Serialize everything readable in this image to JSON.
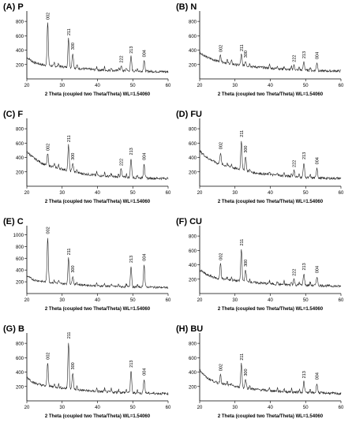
{
  "chart_data": [
    {
      "type": "line",
      "title": "(A) P",
      "xlabel": "2 Theta (coupled two Theta/Theta) WL=1.54060",
      "xlim": [
        20,
        60
      ],
      "xticks": [
        20,
        30,
        40,
        50,
        60
      ],
      "ylim": [
        0,
        900
      ],
      "yticks": [
        200,
        400,
        600,
        800
      ],
      "baseline": [
        [
          20,
          300
        ],
        [
          22,
          230
        ],
        [
          25,
          190
        ],
        [
          30,
          170
        ],
        [
          35,
          145
        ],
        [
          40,
          125
        ],
        [
          45,
          115
        ],
        [
          50,
          110
        ],
        [
          55,
          105
        ],
        [
          60,
          100
        ]
      ],
      "peaks": [
        {
          "label": "002",
          "x": 25.9,
          "y": 780
        },
        {
          "label": "211",
          "x": 31.8,
          "y": 560
        },
        {
          "label": "300",
          "x": 33.0,
          "y": 360
        },
        {
          "label": "222",
          "x": 46.7,
          "y": 180
        },
        {
          "label": "213",
          "x": 49.5,
          "y": 310
        },
        {
          "label": "004",
          "x": 53.2,
          "y": 260
        }
      ]
    },
    {
      "type": "line",
      "title": "(B) N",
      "xlabel": "2 Theta (coupled two Theta/Theta) WL=1.54060",
      "xlim": [
        20,
        60
      ],
      "xticks": [
        20,
        30,
        40,
        50,
        60
      ],
      "ylim": [
        0,
        900
      ],
      "yticks": [
        200,
        400,
        600,
        800
      ],
      "baseline": [
        [
          20,
          370
        ],
        [
          22,
          300
        ],
        [
          25,
          250
        ],
        [
          30,
          200
        ],
        [
          35,
          170
        ],
        [
          40,
          150
        ],
        [
          45,
          130
        ],
        [
          50,
          120
        ],
        [
          55,
          110
        ],
        [
          60,
          110
        ]
      ],
      "peaks": [
        {
          "label": "002",
          "x": 25.9,
          "y": 330
        },
        {
          "label": "211",
          "x": 31.8,
          "y": 340
        },
        {
          "label": "300",
          "x": 33.0,
          "y": 250
        },
        {
          "label": "222",
          "x": 46.7,
          "y": 190
        },
        {
          "label": "213",
          "x": 49.5,
          "y": 240
        },
        {
          "label": "004",
          "x": 53.2,
          "y": 230
        }
      ]
    },
    {
      "type": "line",
      "title": "(C) F",
      "xlabel": "2 Theta (coupled two Theta/Theta) WL=1.54060",
      "xlim": [
        20,
        60
      ],
      "xticks": [
        20,
        30,
        40,
        50,
        60
      ],
      "ylim": [
        0,
        900
      ],
      "yticks": [
        200,
        400,
        600,
        800
      ],
      "baseline": [
        [
          20,
          480
        ],
        [
          22,
          390
        ],
        [
          25,
          300
        ],
        [
          30,
          240
        ],
        [
          35,
          180
        ],
        [
          40,
          150
        ],
        [
          45,
          130
        ],
        [
          50,
          120
        ],
        [
          55,
          110
        ],
        [
          60,
          110
        ]
      ],
      "peaks": [
        {
          "label": "002",
          "x": 25.9,
          "y": 450
        },
        {
          "label": "211",
          "x": 31.8,
          "y": 570
        },
        {
          "label": "300",
          "x": 33.0,
          "y": 320
        },
        {
          "label": "222",
          "x": 46.7,
          "y": 240
        },
        {
          "label": "213",
          "x": 49.5,
          "y": 390
        },
        {
          "label": "004",
          "x": 53.2,
          "y": 320
        }
      ]
    },
    {
      "type": "line",
      "title": "(D) FU",
      "xlabel": "2 Theta (coupled two Theta/Theta) WL=1.54060",
      "xlim": [
        20,
        60
      ],
      "xticks": [
        20,
        30,
        40,
        50,
        60
      ],
      "ylim": [
        0,
        900
      ],
      "yticks": [
        200,
        400,
        600,
        800
      ],
      "baseline": [
        [
          20,
          490
        ],
        [
          22,
          400
        ],
        [
          25,
          320
        ],
        [
          30,
          250
        ],
        [
          35,
          190
        ],
        [
          40,
          160
        ],
        [
          45,
          140
        ],
        [
          50,
          120
        ],
        [
          55,
          110
        ],
        [
          60,
          110
        ]
      ],
      "peaks": [
        {
          "label": "002",
          "x": 25.9,
          "y": 470
        },
        {
          "label": "211",
          "x": 31.8,
          "y": 640
        },
        {
          "label": "300",
          "x": 33.0,
          "y": 420
        },
        {
          "label": "222",
          "x": 46.7,
          "y": 220
        },
        {
          "label": "213",
          "x": 49.5,
          "y": 330
        },
        {
          "label": "004",
          "x": 53.2,
          "y": 260
        }
      ]
    },
    {
      "type": "line",
      "title": "(E) C",
      "xlabel": "2 Theta (coupled two Theta/Theta) WL=1.54060",
      "xlim": [
        20,
        60
      ],
      "xticks": [
        20,
        30,
        40,
        50,
        60
      ],
      "ylim": [
        0,
        1100
      ],
      "yticks": [
        200,
        400,
        600,
        800,
        1000
      ],
      "baseline": [
        [
          20,
          300
        ],
        [
          22,
          230
        ],
        [
          25,
          200
        ],
        [
          30,
          170
        ],
        [
          35,
          150
        ],
        [
          40,
          130
        ],
        [
          45,
          120
        ],
        [
          50,
          110
        ],
        [
          55,
          110
        ],
        [
          60,
          100
        ]
      ],
      "peaks": [
        {
          "label": "002",
          "x": 25.9,
          "y": 960
        },
        {
          "label": "211",
          "x": 31.8,
          "y": 600
        },
        {
          "label": "300",
          "x": 33.0,
          "y": 300
        },
        {
          "label": "213",
          "x": 49.5,
          "y": 470
        },
        {
          "label": "004",
          "x": 53.2,
          "y": 500
        }
      ]
    },
    {
      "type": "line",
      "title": "(F) CU",
      "xlabel": "2 Theta (coupled two Theta/Theta) WL=1.54060",
      "xlim": [
        20,
        60
      ],
      "xticks": [
        20,
        30,
        40,
        50,
        60
      ],
      "ylim": [
        0,
        900
      ],
      "yticks": [
        200,
        400,
        600,
        800
      ],
      "baseline": [
        [
          20,
          330
        ],
        [
          22,
          260
        ],
        [
          25,
          210
        ],
        [
          30,
          180
        ],
        [
          35,
          155
        ],
        [
          40,
          135
        ],
        [
          45,
          120
        ],
        [
          50,
          115
        ],
        [
          55,
          110
        ],
        [
          60,
          100
        ]
      ],
      "peaks": [
        {
          "label": "002",
          "x": 25.9,
          "y": 420
        },
        {
          "label": "211",
          "x": 31.8,
          "y": 620
        },
        {
          "label": "300",
          "x": 33.0,
          "y": 330
        },
        {
          "label": "222",
          "x": 46.7,
          "y": 200
        },
        {
          "label": "213",
          "x": 49.5,
          "y": 280
        },
        {
          "label": "004",
          "x": 53.2,
          "y": 240
        }
      ]
    },
    {
      "type": "line",
      "title": "(G) B",
      "xlabel": "2 Theta (coupled two Theta/Theta) WL=1.54060",
      "xlim": [
        20,
        60
      ],
      "xticks": [
        20,
        30,
        40,
        50,
        60
      ],
      "ylim": [
        0,
        900
      ],
      "yticks": [
        200,
        400,
        600,
        800
      ],
      "baseline": [
        [
          20,
          330
        ],
        [
          22,
          250
        ],
        [
          25,
          210
        ],
        [
          30,
          180
        ],
        [
          35,
          150
        ],
        [
          40,
          130
        ],
        [
          45,
          120
        ],
        [
          50,
          110
        ],
        [
          55,
          105
        ],
        [
          60,
          100
        ]
      ],
      "peaks": [
        {
          "label": "002",
          "x": 25.9,
          "y": 530
        },
        {
          "label": "211",
          "x": 31.8,
          "y": 820
        },
        {
          "label": "300",
          "x": 33.0,
          "y": 390
        },
        {
          "label": "213",
          "x": 49.5,
          "y": 420
        },
        {
          "label": "004",
          "x": 53.2,
          "y": 310
        }
      ]
    },
    {
      "type": "line",
      "title": "(H) BU",
      "xlabel": "2 Theta (coupled two Theta/Theta) WL=1.54060",
      "xlim": [
        20,
        60
      ],
      "xticks": [
        20,
        30,
        40,
        50,
        60
      ],
      "ylim": [
        0,
        900
      ],
      "yticks": [
        200,
        400,
        600,
        800
      ],
      "baseline": [
        [
          20,
          430
        ],
        [
          22,
          320
        ],
        [
          25,
          250
        ],
        [
          30,
          200
        ],
        [
          35,
          165
        ],
        [
          40,
          140
        ],
        [
          45,
          125
        ],
        [
          50,
          115
        ],
        [
          55,
          110
        ],
        [
          60,
          100
        ]
      ],
      "peaks": [
        {
          "label": "002",
          "x": 25.9,
          "y": 370
        },
        {
          "label": "211",
          "x": 31.8,
          "y": 520
        },
        {
          "label": "300",
          "x": 33.0,
          "y": 300
        },
        {
          "label": "213",
          "x": 49.5,
          "y": 270
        },
        {
          "label": "004",
          "x": 53.2,
          "y": 250
        }
      ]
    }
  ]
}
